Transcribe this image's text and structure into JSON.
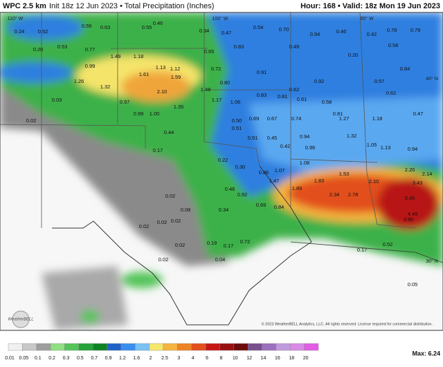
{
  "header": {
    "model": "WPC 2.5 km",
    "init": "Init 18z 12 Jun 2023 • Total Precipitation (Inches)",
    "valid": "Hour: 168 • Valid: 18z Mon 19 Jun 2023"
  },
  "graticule": [
    "110° W",
    "100° W",
    "90° W",
    "40° N",
    "30° N"
  ],
  "map_labels": [
    "0.24",
    "0.52",
    "0.59",
    "0.63",
    "0.55",
    "0.46",
    "0.34",
    "0.47",
    "0.54",
    "0.70",
    "0.54",
    "0.46",
    "0.42",
    "0.78",
    "0.79",
    "0.20",
    "0.53",
    "0.77",
    "1.49",
    "1.18",
    "0.65",
    "0.83",
    "0.49",
    "0.20",
    "0.58",
    "0.99",
    "1.13",
    "1.12",
    "0.72",
    "0.91",
    "0.84",
    "1.26",
    "1.32",
    "1.61",
    "1.59",
    "0.80",
    "0.62",
    "0.92",
    "0.57",
    "2.10",
    "1.48",
    "0.83",
    "0.81",
    "0.61",
    "0.58",
    "0.62",
    "0.97",
    "1.17",
    "1.06",
    "1.35",
    "1.00",
    "0.99",
    "0.81",
    "1.27",
    "1.18",
    "0.47",
    "0.50",
    "0.69",
    "0.67",
    "0.74",
    "0.51",
    "0.44",
    "0.51",
    "0.45",
    "0.94",
    "1.32",
    "0.42",
    "0.96",
    "1.05",
    "1.13",
    "0.94",
    "0.17",
    "0.22",
    "0.30",
    "1.08",
    "0.86",
    "1.07",
    "1.53",
    "2.20",
    "2.14",
    "1.83",
    "2.10",
    "3.43",
    "1.47",
    "1.89",
    "2.34",
    "2.78",
    "0.46",
    "0.92",
    "5.45",
    "0.69",
    "0.84",
    "4.49",
    "3.90",
    "0.02",
    "0.08",
    "0.02",
    "0.02",
    "0.02",
    "0.34",
    "0.02",
    "0.72",
    "0.17",
    "0.19",
    "0.52",
    "0.02",
    "0.17",
    "0.04",
    "0.02",
    "0.03",
    "0.05"
  ],
  "logo": "WeatherBELL",
  "copyright": "© 2023 WeatherBELL Analytics, LLC. All rights reserved. License required for commercial distribution.",
  "max": "Max: 6.24",
  "colorbar": {
    "labels": [
      "0.01",
      "0.05",
      "0.1",
      "0.2",
      "0.3",
      "0.5",
      "0.7",
      "0.9",
      "1.2",
      "1.6",
      "2",
      "2.5",
      "3",
      "4",
      "6",
      "8",
      "10",
      "12",
      "14",
      "16",
      "18",
      "20"
    ],
    "colors": [
      "#f0f0f0",
      "#c8c8c8",
      "#9e9e9e",
      "#8fe082",
      "#55c45a",
      "#26a33a",
      "#0f8424",
      "#1f63c9",
      "#3a8ff0",
      "#79c2f5",
      "#f7e66c",
      "#f5b53e",
      "#ee8426",
      "#e2501d",
      "#c71616",
      "#9a1010",
      "#6e0c0c",
      "#7a4f8e",
      "#9c6fbf",
      "#c09ade",
      "#d98be6",
      "#e25ee6"
    ]
  }
}
